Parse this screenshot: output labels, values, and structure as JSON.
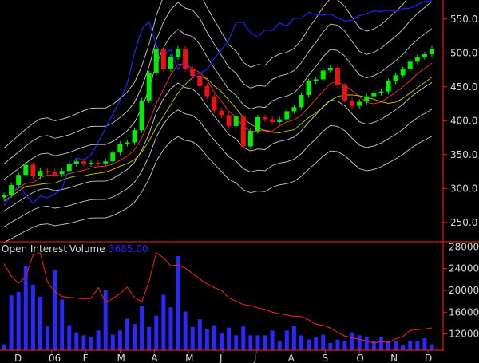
{
  "chart_data": {
    "type": "candlestick",
    "price_axis": {
      "ticks": [
        250,
        300,
        350,
        400,
        450,
        500,
        550
      ],
      "ylim": [
        225,
        578
      ]
    },
    "oi_axis": {
      "ticks": [
        12000,
        16000,
        20000,
        24000,
        28000
      ],
      "ylim": [
        9000,
        28500
      ]
    },
    "x_tick_labels": [
      "D",
      "06",
      "F",
      "M",
      "A",
      "M",
      "J",
      "J",
      "A",
      "S",
      "O",
      "N",
      "D"
    ],
    "panel_legend": {
      "open_interest_label": "Open Interest",
      "volume_label": "Volume",
      "volume_value": "3685.00"
    },
    "colors": {
      "up": "#00ee00",
      "down": "#ee1111",
      "blue_line": "#2020ff",
      "bands": "#c8c8c8",
      "ma_red": "#ff3030",
      "ma_yellow": "#c8c800",
      "oi_line": "#ff2020",
      "volume": "#2828ff",
      "axis": "#ff2020",
      "text": "#d8d8d8"
    },
    "price_series": {
      "close": [
        290,
        305,
        320,
        335,
        318,
        326,
        325,
        321,
        326,
        336,
        340,
        336,
        338,
        337,
        340,
        353,
        366,
        368,
        386,
        430,
        470,
        505,
        476,
        494,
        506,
        476,
        466,
        451,
        436,
        415,
        408,
        392,
        406,
        362,
        385,
        405,
        402,
        398,
        402,
        414,
        420,
        438,
        458,
        461,
        474,
        478,
        452,
        430,
        422,
        428,
        436,
        441,
        443,
        458,
        467,
        476,
        487,
        494,
        498,
        506
      ],
      "blue_line": [
        275,
        290,
        305,
        290,
        278,
        289,
        286,
        292,
        300,
        330,
        345,
        342,
        350,
        368,
        389,
        410,
        430,
        455,
        500,
        535,
        546,
        510,
        498,
        505,
        475,
        490,
        465,
        470,
        476,
        492,
        505,
        519,
        545,
        545,
        530,
        523,
        534,
        533,
        544,
        540,
        551,
        551,
        560,
        556,
        556,
        557,
        552,
        547,
        548,
        555,
        558,
        562,
        561,
        563,
        561,
        565,
        566,
        571,
        576,
        577
      ]
    },
    "volume_series": [
      1000,
      9200,
      9800,
      14200,
      11000,
      9000,
      4000,
      13500,
      8500,
      4200,
      3000,
      2500,
      2200,
      3300,
      10100,
      2600,
      3300,
      5300,
      4400,
      7500,
      3900,
      5800,
      9300,
      7200,
      15800,
      6500,
      3900,
      5200,
      3600,
      4200,
      2800,
      3800,
      2500,
      4000,
      2500,
      2500,
      2500,
      3300,
      1500,
      3300,
      4100,
      2500,
      1800,
      2200,
      2600,
      1200,
      1800,
      1500,
      3000,
      2500,
      2200,
      1500,
      2200,
      1500,
      1500,
      800,
      1500,
      1500,
      2000,
      1000
    ],
    "open_interest_series": [
      24900,
      22600,
      21300,
      22500,
      26500,
      26900,
      21500,
      19800,
      18900,
      18700,
      18600,
      18400,
      18500,
      20500,
      17800,
      18500,
      19400,
      20600,
      18700,
      17900,
      21700,
      26900,
      26000,
      24500,
      24700,
      24100,
      23100,
      22100,
      21200,
      20500,
      20000,
      18600,
      18000,
      17400,
      17200,
      16800,
      16500,
      16000,
      15700,
      15500,
      15200,
      15200,
      14600,
      13800,
      13600,
      13100,
      12300,
      11600,
      11300,
      11000,
      10700,
      10300,
      10600,
      10400,
      11100,
      11500,
      12600,
      12800,
      12900,
      13100
    ]
  }
}
